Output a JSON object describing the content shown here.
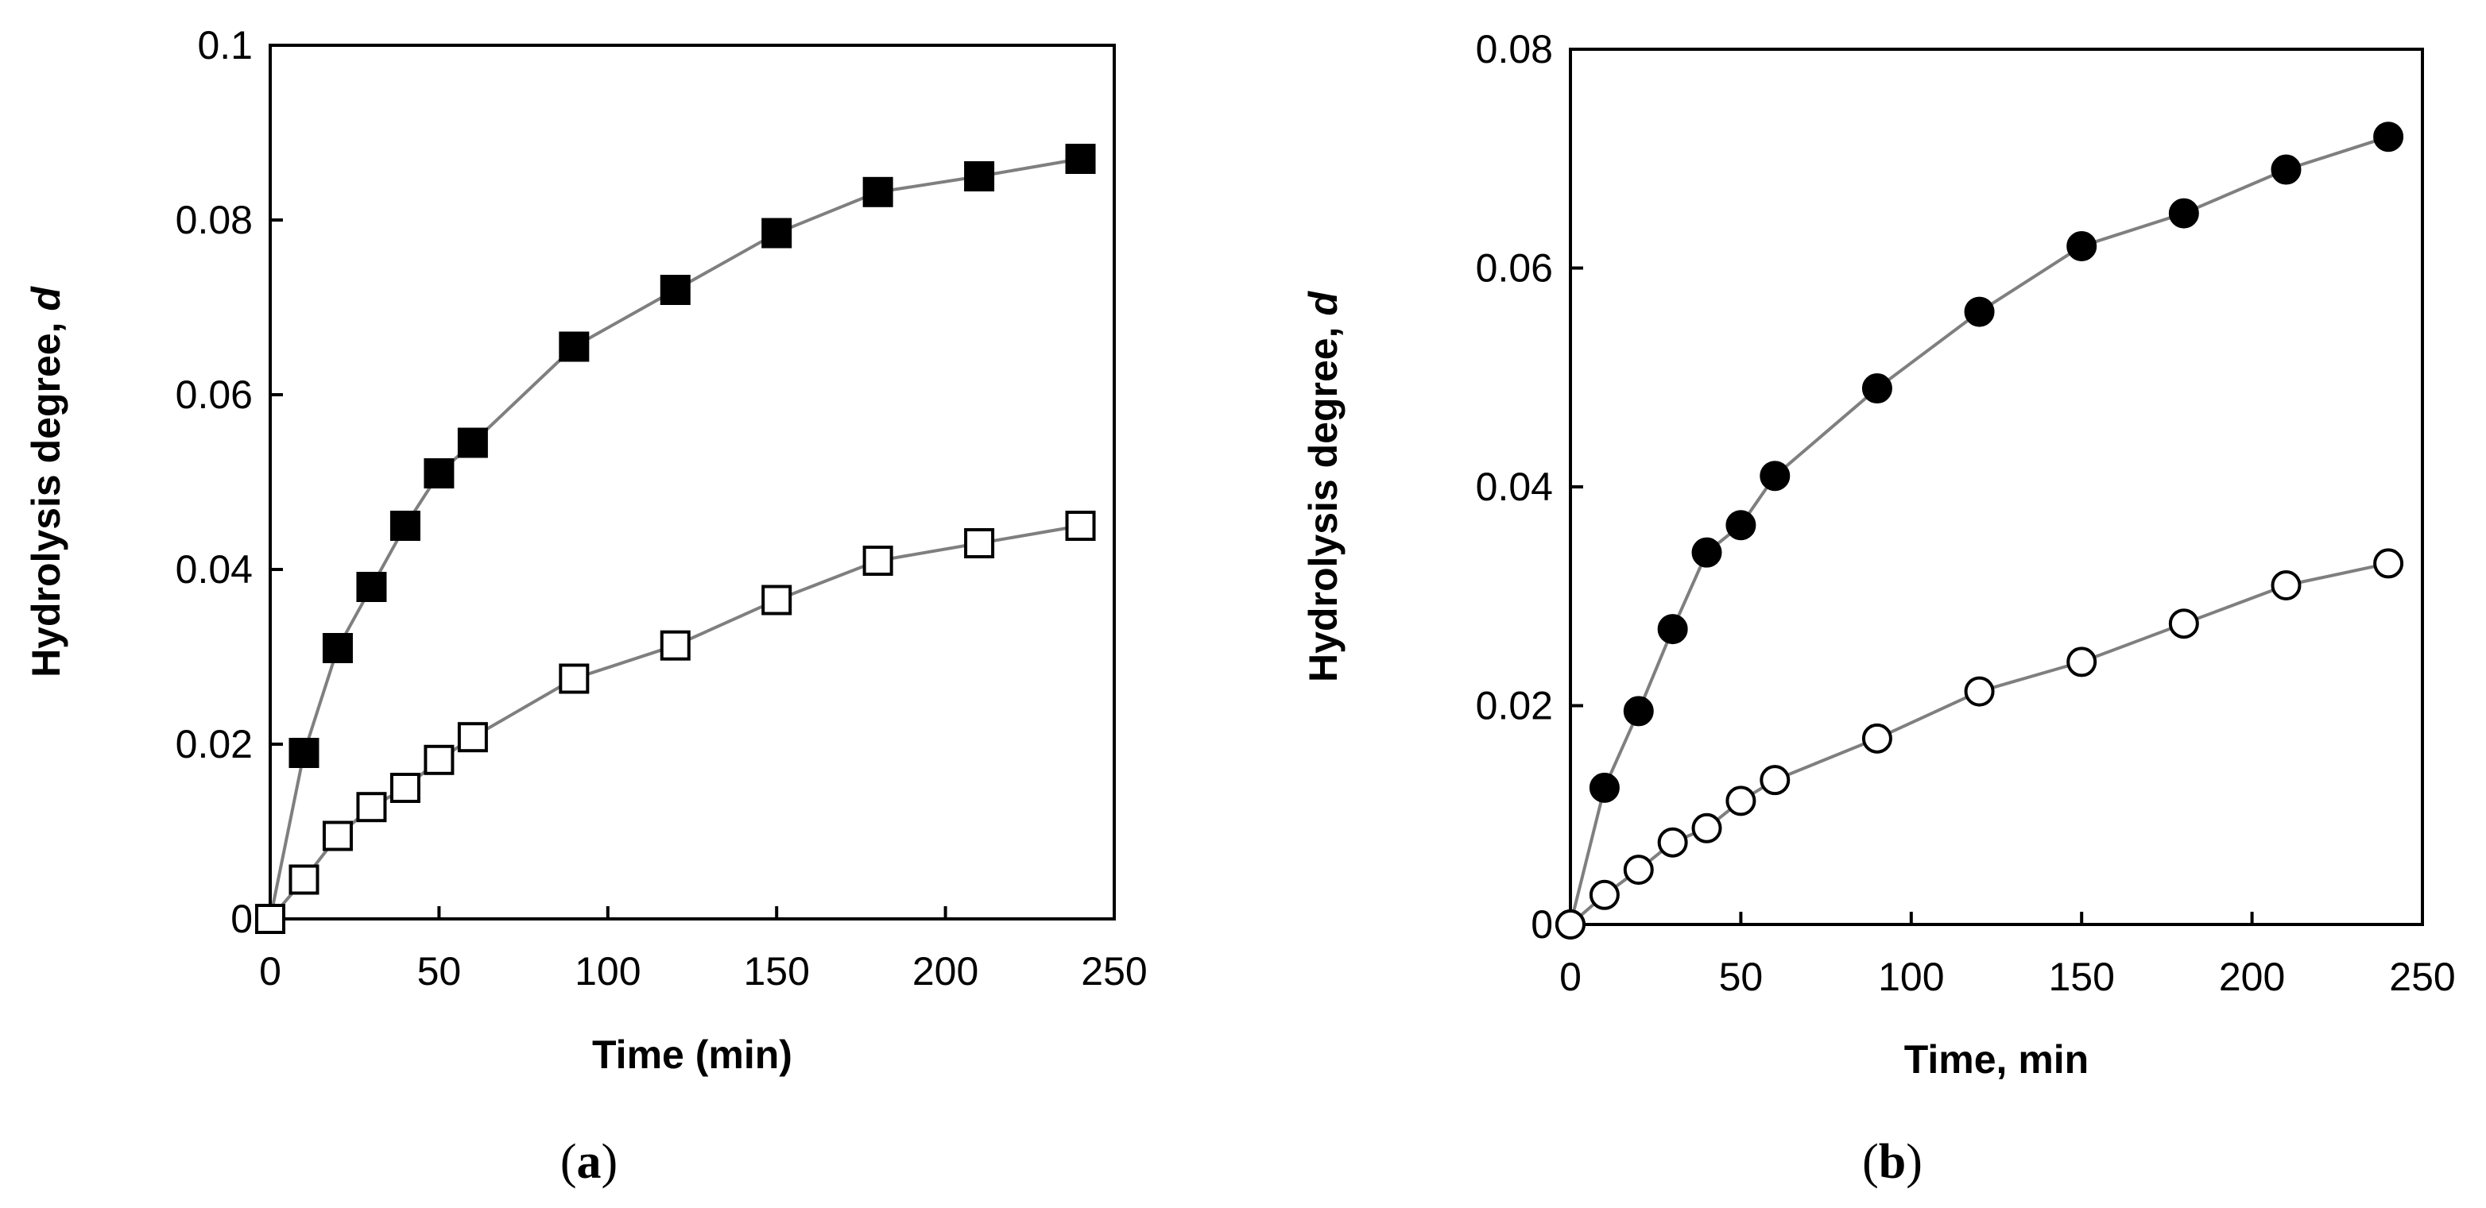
{
  "colors": {
    "line": "#7f7f7f",
    "marker_edge": "#000000",
    "filled_marker": "#000000",
    "open_marker": "#ffffff",
    "axis": "#000000"
  },
  "chart_data": [
    {
      "type": "line",
      "panel_label": "a",
      "title": "",
      "xlabel": "Time (min)",
      "ylabel_main": "Hydrolysis degree, ",
      "ylabel_var": "d",
      "xlim": [
        0,
        250
      ],
      "ylim": [
        0,
        0.1
      ],
      "xticks": [
        0,
        50,
        100,
        150,
        200,
        250
      ],
      "xtick_labels": [
        "0",
        "50",
        "100",
        "150",
        "200",
        "250"
      ],
      "yticks": [
        0,
        0.02,
        0.04,
        0.06,
        0.08,
        0.1
      ],
      "ytick_labels": [
        "0",
        "0.02",
        "0.04",
        "0.06",
        "0.08",
        "0.1"
      ],
      "grid": false,
      "legend": "none",
      "series": [
        {
          "name": "filled squares",
          "marker": "square",
          "filled": true,
          "x": [
            0,
            10,
            20,
            30,
            40,
            50,
            60,
            90,
            120,
            150,
            180,
            210,
            240
          ],
          "y": [
            0,
            0.019,
            0.031,
            0.038,
            0.045,
            0.051,
            0.0545,
            0.0655,
            0.072,
            0.0785,
            0.0832,
            0.085,
            0.087
          ]
        },
        {
          "name": "open squares",
          "marker": "square",
          "filled": false,
          "x": [
            0,
            10,
            20,
            30,
            40,
            50,
            60,
            90,
            120,
            150,
            180,
            210,
            240
          ],
          "y": [
            0,
            0.0045,
            0.0095,
            0.0128,
            0.015,
            0.0182,
            0.0208,
            0.0275,
            0.0313,
            0.0365,
            0.041,
            0.043,
            0.045
          ]
        }
      ]
    },
    {
      "type": "line",
      "panel_label": "b",
      "title": "",
      "xlabel": "Time, min",
      "ylabel_main": "Hydrolysis degree, ",
      "ylabel_var": "d",
      "xlim": [
        0,
        250
      ],
      "ylim": [
        0,
        0.08
      ],
      "xticks": [
        0,
        50,
        100,
        150,
        200,
        250
      ],
      "xtick_labels": [
        "0",
        "50",
        "100",
        "150",
        "200",
        "250"
      ],
      "yticks": [
        0,
        0.02,
        0.04,
        0.06,
        0.08
      ],
      "ytick_labels": [
        "0",
        "0.02",
        "0.04",
        "0.06",
        "0.08"
      ],
      "grid": false,
      "legend": "none",
      "series": [
        {
          "name": "filled circles",
          "marker": "circle",
          "filled": true,
          "x": [
            0,
            10,
            20,
            30,
            40,
            50,
            60,
            90,
            120,
            150,
            180,
            210,
            240
          ],
          "y": [
            0,
            0.0125,
            0.0195,
            0.027,
            0.034,
            0.0365,
            0.041,
            0.049,
            0.056,
            0.062,
            0.065,
            0.069,
            0.072
          ]
        },
        {
          "name": "open circles",
          "marker": "circle",
          "filled": false,
          "x": [
            0,
            10,
            20,
            30,
            40,
            50,
            60,
            90,
            120,
            150,
            180,
            210,
            240
          ],
          "y": [
            0,
            0.0027,
            0.005,
            0.0075,
            0.0088,
            0.0113,
            0.0132,
            0.017,
            0.0213,
            0.024,
            0.0275,
            0.031,
            0.033
          ]
        }
      ]
    }
  ]
}
